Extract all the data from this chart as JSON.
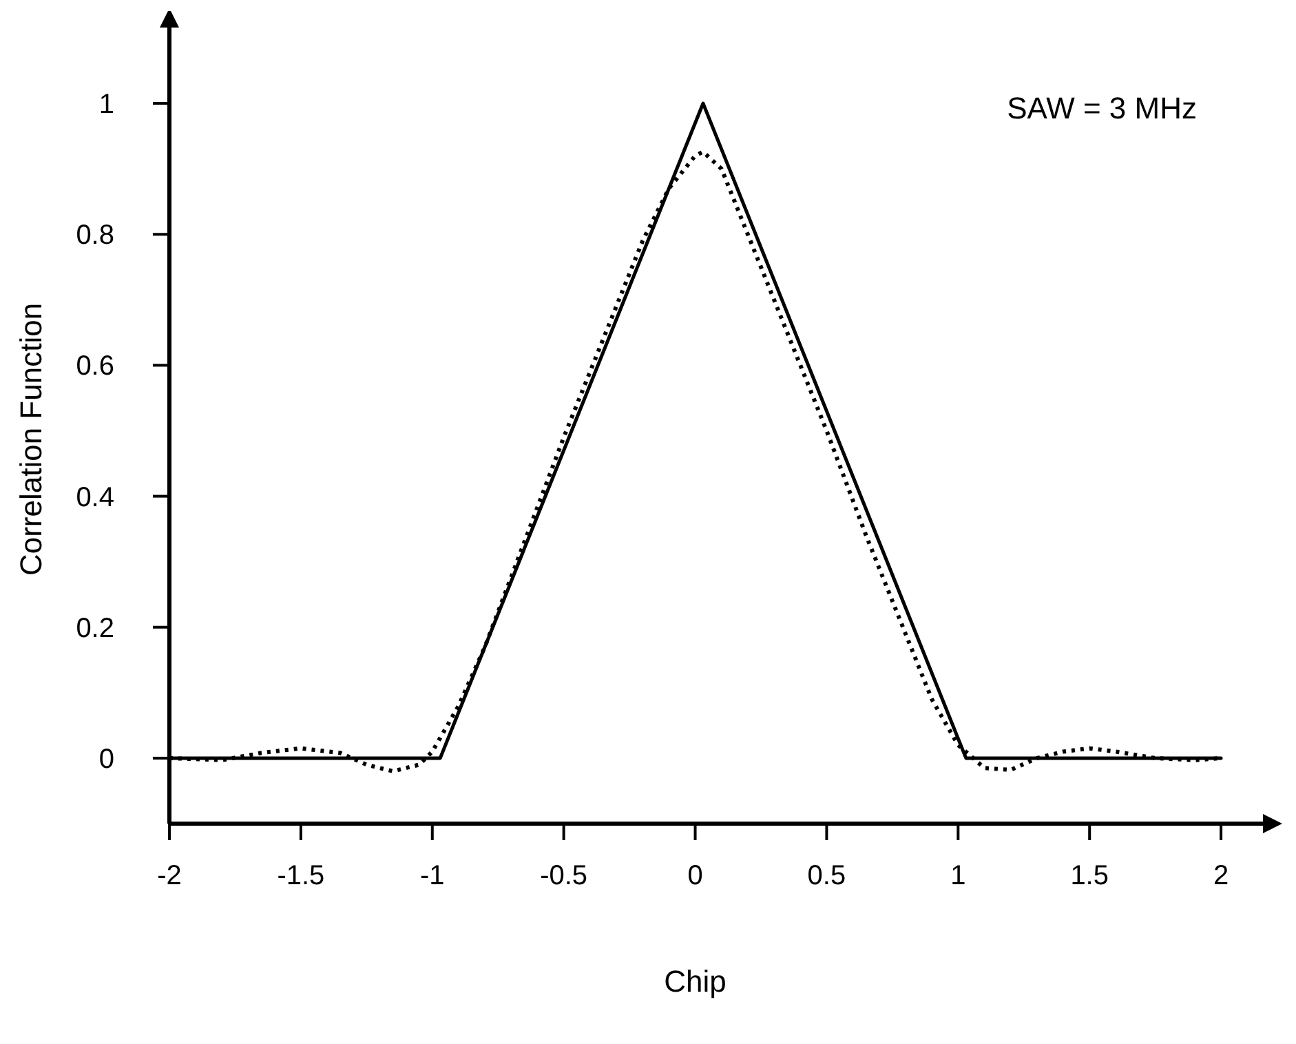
{
  "chart_data": {
    "type": "line",
    "xlabel": "Chip",
    "ylabel": "Correlation Function",
    "annotations": [
      "SAW = 3 MHz"
    ],
    "xlim": [
      -2,
      2.17
    ],
    "ylim": [
      -0.1,
      1.12
    ],
    "xticks": [
      -2,
      -1.5,
      -1,
      -0.5,
      0,
      0.5,
      1,
      1.5,
      2
    ],
    "yticks": [
      0,
      0.2,
      0.4,
      0.6,
      0.8,
      1
    ],
    "grid": false,
    "series": [
      {
        "color": "#000000",
        "line_style": "solid",
        "x": [
          -2,
          -0.97,
          0.03,
          1.03,
          2
        ],
        "values": [
          0,
          0,
          1,
          0,
          0
        ]
      },
      {
        "color": "#000000",
        "line_style": "dotted",
        "x": [
          -2,
          -1.8,
          -1.65,
          -1.5,
          -1.35,
          -1.25,
          -1.15,
          -1.05,
          -1,
          -0.9,
          -0.8,
          -0.65,
          -0.5,
          -0.35,
          -0.2,
          -0.1,
          0,
          0.03,
          0.1,
          0.2,
          0.35,
          0.5,
          0.65,
          0.8,
          0.9,
          1,
          1.1,
          1.2,
          1.3,
          1.4,
          1.5,
          1.6,
          1.75,
          1.9,
          2
        ],
        "values": [
          0,
          -0.003,
          0.008,
          0.015,
          0.008,
          -0.01,
          -0.02,
          -0.01,
          0.01,
          0.08,
          0.17,
          0.33,
          0.49,
          0.64,
          0.79,
          0.87,
          0.92,
          0.926,
          0.9,
          0.8,
          0.65,
          0.5,
          0.34,
          0.19,
          0.09,
          0.02,
          -0.015,
          -0.018,
          0,
          0.01,
          0.015,
          0.01,
          0,
          -0.003,
          0
        ]
      }
    ]
  }
}
